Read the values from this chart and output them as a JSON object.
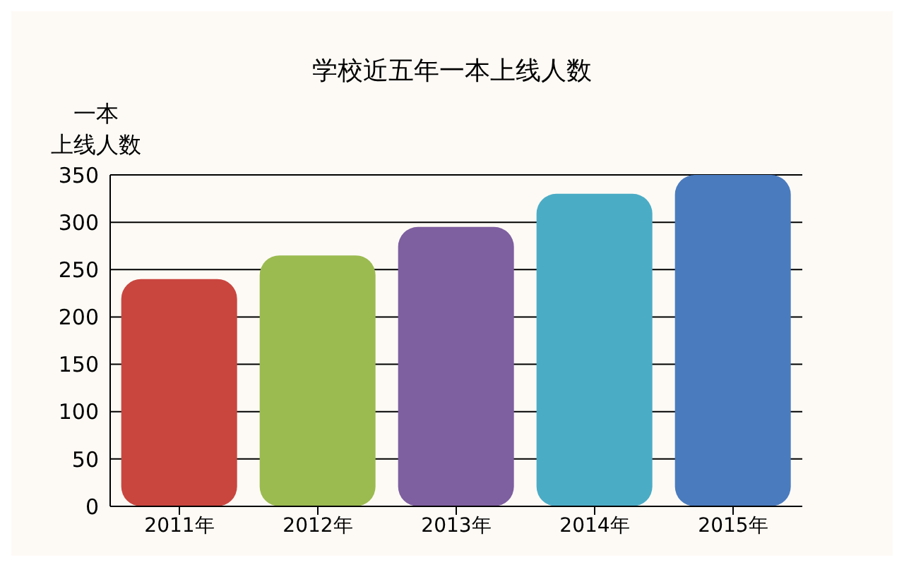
{
  "chart_data": {
    "type": "bar",
    "title": "学校近五年一本上线人数",
    "ylabel": "一本上线人数",
    "categories": [
      "2011年",
      "2012年",
      "2013年",
      "2014年",
      "2015年"
    ],
    "values": [
      240,
      265,
      295,
      330,
      350
    ],
    "colors": [
      "#c9463f",
      "#9bbb50",
      "#7e5fa0",
      "#4bacc6",
      "#4a7bbf"
    ],
    "ylim": [
      0,
      350
    ],
    "yticks": [
      0,
      50,
      100,
      150,
      200,
      250,
      300,
      350
    ],
    "grid": "y"
  }
}
